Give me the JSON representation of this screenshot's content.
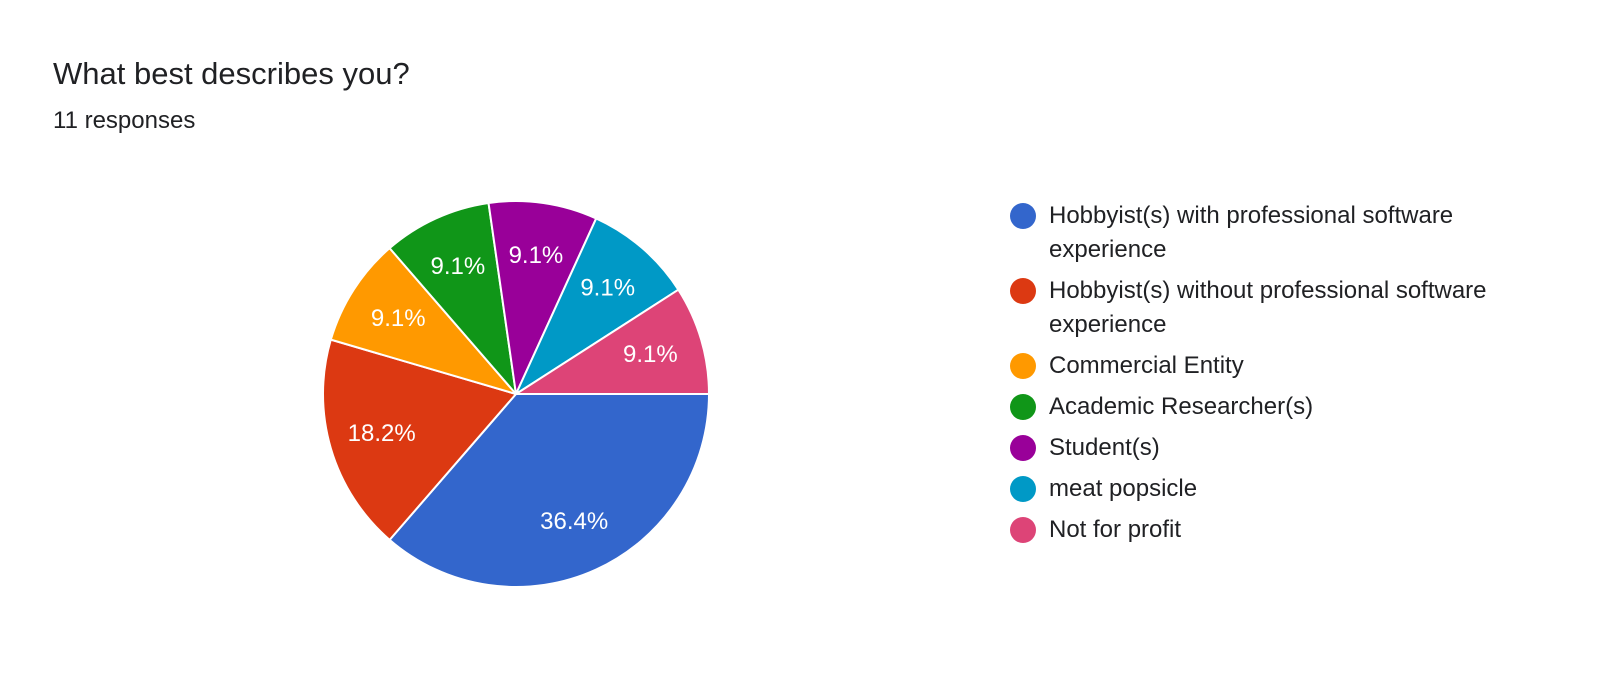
{
  "header": {
    "title": "What best describes you?",
    "subtitle": "11 responses"
  },
  "chart_data": {
    "type": "pie",
    "title": "What best describes you?",
    "subtitle": "11 responses",
    "legend_position": "right",
    "start": "3 o'clock, clockwise",
    "slices": [
      {
        "label": "Hobbyist(s) with professional software experience",
        "value": 36.4,
        "display": "36.4%",
        "color": "#3366cc"
      },
      {
        "label": "Hobbyist(s) without professional software experience",
        "value": 18.2,
        "display": "18.2%",
        "color": "#dc3912"
      },
      {
        "label": "Commercial Entity",
        "value": 9.1,
        "display": "9.1%",
        "color": "#ff9900"
      },
      {
        "label": "Academic Researcher(s)",
        "value": 9.1,
        "display": "9.1%",
        "color": "#109618"
      },
      {
        "label": "Student(s)",
        "value": 9.1,
        "display": "9.1%",
        "color": "#990099"
      },
      {
        "label": "meat popsicle",
        "value": 9.1,
        "display": "9.1%",
        "color": "#0099c6"
      },
      {
        "label": "Not for profit",
        "value": 9.1,
        "display": "9.1%",
        "color": "#dd4477"
      }
    ]
  }
}
